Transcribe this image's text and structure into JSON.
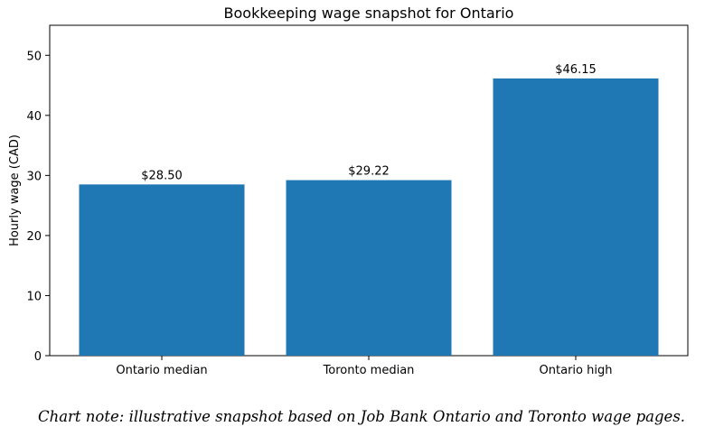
{
  "chart_data": {
    "type": "bar",
    "title": "Bookkeeping wage snapshot for Ontario",
    "xlabel": "",
    "ylabel": "Hourly wage (CAD)",
    "categories": [
      "Ontario median",
      "Toronto median",
      "Ontario high"
    ],
    "values": [
      28.5,
      29.22,
      46.15
    ],
    "data_labels": [
      "$28.50",
      "$29.22",
      "$46.15"
    ],
    "ylim": [
      0,
      55
    ],
    "yticks": [
      0,
      10,
      20,
      30,
      40,
      50
    ],
    "bar_color": "#1f77b4",
    "grid": false,
    "legend": "none"
  },
  "note": "Chart note: illustrative snapshot based on Job Bank Ontario and Toronto wage pages."
}
